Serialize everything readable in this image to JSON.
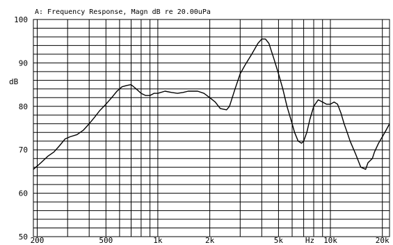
{
  "chart_data": {
    "type": "line",
    "title": "A: Frequency Response, Magn dB re 20.00uPa",
    "xlabel": "Hz",
    "ylabel": "dB",
    "x_scale": "log",
    "xlim": [
      190,
      22000
    ],
    "ylim": [
      50,
      100
    ],
    "grid": true,
    "x_ticks": [
      {
        "value": 200,
        "label": "200"
      },
      {
        "value": 500,
        "label": "500"
      },
      {
        "value": 1000,
        "label": "1k"
      },
      {
        "value": 2000,
        "label": "2k"
      },
      {
        "value": 5000,
        "label": "5k"
      },
      {
        "value": 10000,
        "label": "10k"
      },
      {
        "value": 20000,
        "label": "20k"
      }
    ],
    "y_ticks": [
      {
        "value": 100,
        "label": "100"
      },
      {
        "value": 90,
        "label": "90"
      },
      {
        "value": 80,
        "label": "80"
      },
      {
        "value": 70,
        "label": "70"
      },
      {
        "value": 60,
        "label": "60"
      },
      {
        "value": 50,
        "label": "50"
      }
    ],
    "series": [
      {
        "color": "#000000",
        "x": [
          190,
          210,
          230,
          250,
          270,
          290,
          310,
          340,
          370,
          400,
          430,
          460,
          500,
          540,
          580,
          620,
          660,
          700,
          750,
          800,
          850,
          900,
          950,
          1000,
          1100,
          1200,
          1300,
          1400,
          1500,
          1700,
          1850,
          2000,
          2150,
          2300,
          2500,
          2600,
          2800,
          3000,
          3200,
          3500,
          3800,
          4000,
          4200,
          4400,
          4700,
          5000,
          5300,
          5600,
          6000,
          6200,
          6500,
          6800,
          7000,
          7300,
          7600,
          8000,
          8500,
          9000,
          9500,
          10000,
          10500,
          11000,
          11500,
          12000,
          12500,
          13000,
          14000,
          15000,
          16000,
          16500,
          17000,
          17500,
          18000,
          19000,
          20000,
          21000,
          22000
        ],
        "y": [
          65.5,
          67,
          68.5,
          69.5,
          71,
          72.5,
          73,
          73.5,
          74.5,
          76,
          77.5,
          79,
          80.5,
          82,
          83.5,
          84.5,
          84.8,
          85,
          84,
          83,
          82.5,
          82.5,
          83,
          83,
          83.5,
          83.2,
          83,
          83.2,
          83.5,
          83.5,
          83,
          82,
          81,
          79.5,
          79.2,
          80,
          84,
          87.5,
          89.5,
          92,
          94.5,
          95.5,
          95.5,
          94.5,
          91,
          87.5,
          84,
          80,
          76,
          74,
          72,
          71.5,
          72,
          74,
          77,
          80,
          81.5,
          81,
          80.5,
          80.5,
          81,
          80.5,
          78.5,
          76,
          74,
          72,
          69,
          66,
          65.5,
          67,
          67.5,
          68,
          69.5,
          71.5,
          73,
          74.5,
          76
        ]
      }
    ]
  }
}
